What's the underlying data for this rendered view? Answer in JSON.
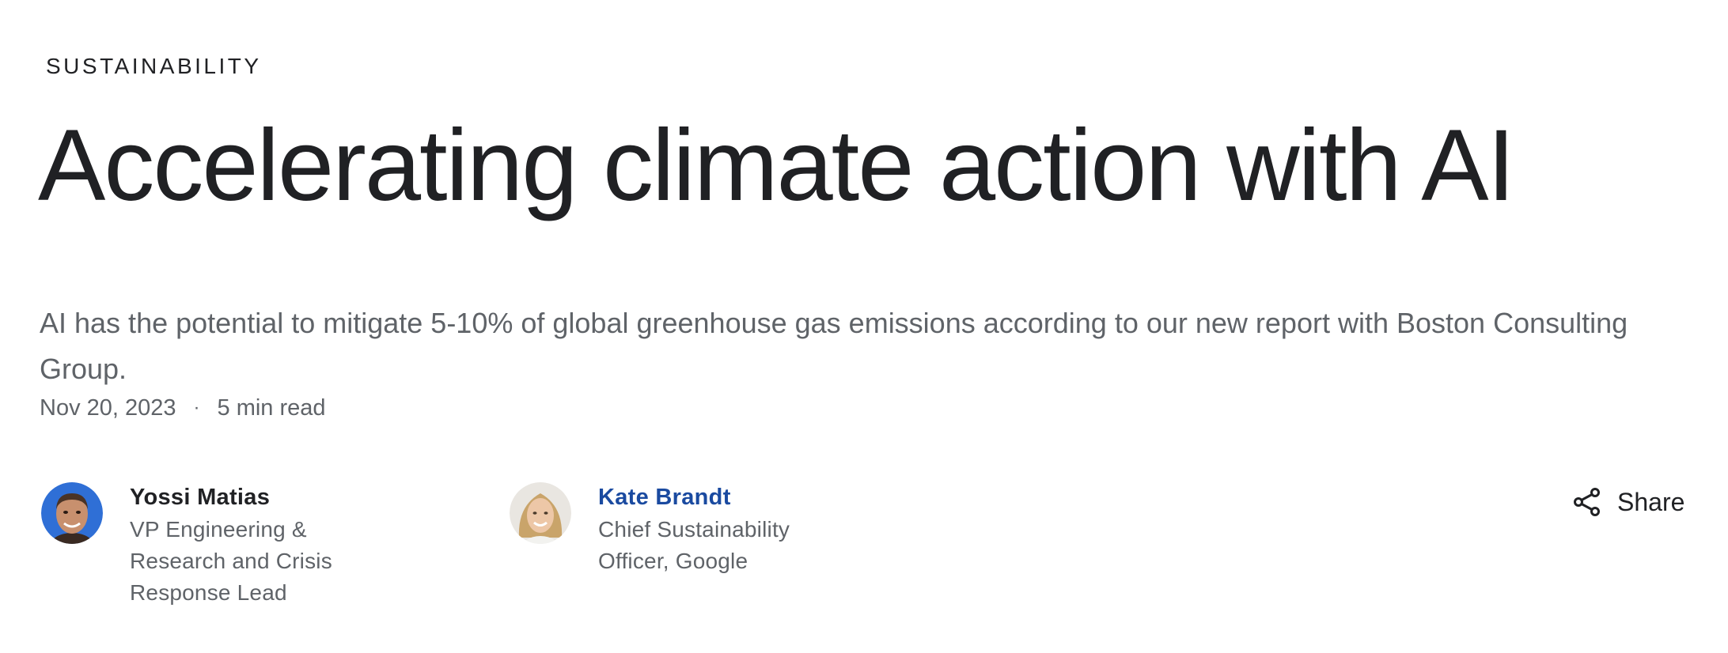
{
  "article": {
    "category": "SUSTAINABILITY",
    "title": "Accelerating climate action with AI",
    "summary": "AI has the potential to mitigate 5-10% of global greenhouse gas emissions according to our new report with Boston Consulting Group.",
    "date": "Nov 20, 2023",
    "separator": "·",
    "read_time": "5 min read"
  },
  "authors": [
    {
      "name": "Yossi Matias",
      "title": "VP Engineering & Research and Crisis Response Lead",
      "linked": false
    },
    {
      "name": "Kate Brandt",
      "title": "Chief Sustainability Officer, Google",
      "linked": true
    }
  ],
  "share": {
    "label": "Share",
    "icon": "share-icon"
  },
  "colors": {
    "text_primary": "#202124",
    "text_secondary": "#5f6368",
    "link": "#1a4aa0",
    "avatar1_bg": "#2f6fd6"
  }
}
